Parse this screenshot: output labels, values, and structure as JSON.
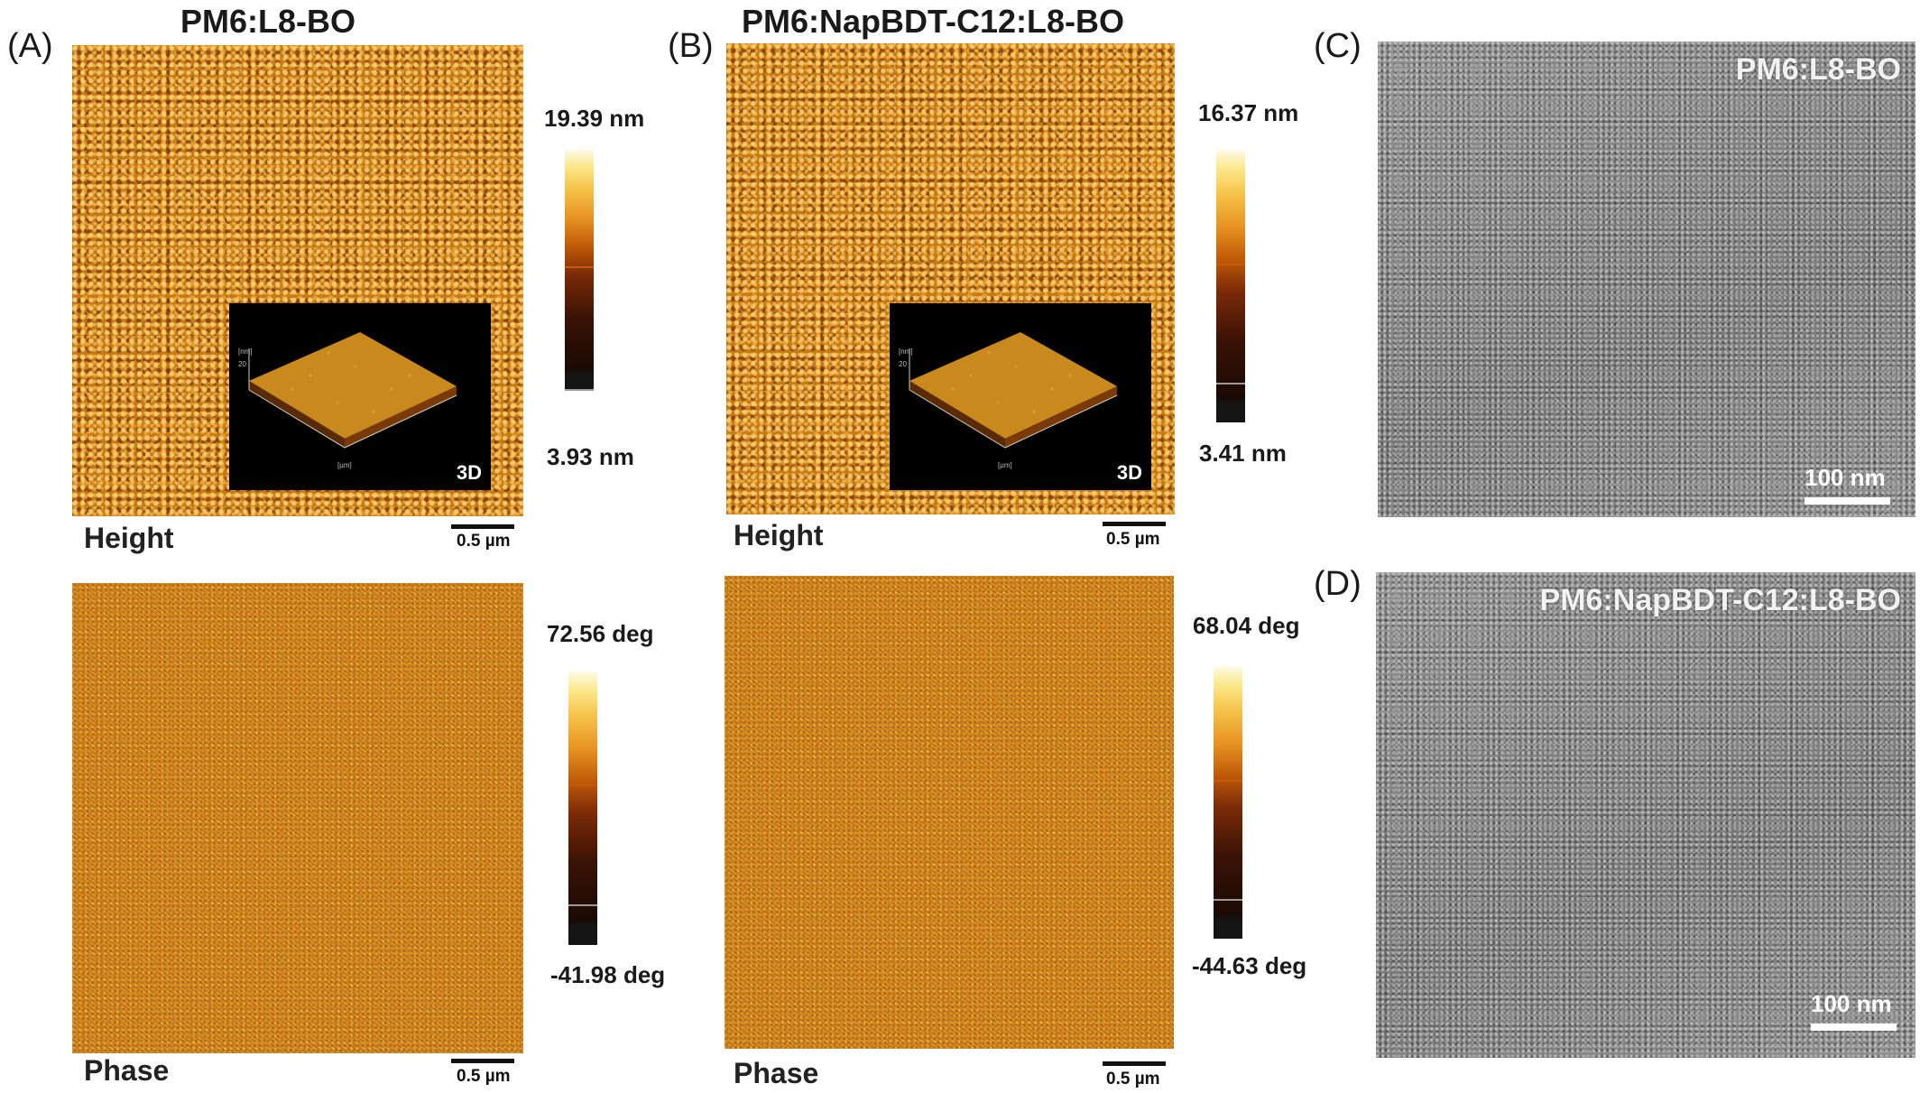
{
  "panels": {
    "a": {
      "letter": "(A)",
      "title": "PM6:L8-BO",
      "height_label": "Height",
      "phase_label": "Phase",
      "inset_label": "3D",
      "inset_axis_unit_z": "[nm]",
      "inset_axis_unit_x": "[µm]",
      "inset_axis_tick_z": "20",
      "height_scalebar": "0.5 µm",
      "phase_scalebar": "0.5 µm",
      "height_colorbar": {
        "max": "19.39 nm",
        "min": "3.93 nm"
      },
      "phase_colorbar": {
        "max": "72.56 deg",
        "min": "-41.98 deg"
      }
    },
    "b": {
      "letter": "(B)",
      "title": "PM6:NapBDT-C12:L8-BO",
      "height_label": "Height",
      "phase_label": "Phase",
      "inset_label": "3D",
      "inset_axis_unit_z": "[nm]",
      "inset_axis_unit_x": "[µm]",
      "inset_axis_tick_z": "20",
      "height_scalebar": "0.5 µm",
      "phase_scalebar": "0.5 µm",
      "height_colorbar": {
        "max": "16.37 nm",
        "min": "3.41 nm"
      },
      "phase_colorbar": {
        "max": "68.04 deg",
        "min": "-44.63 deg"
      }
    },
    "c": {
      "letter": "(C)",
      "title": "PM6:L8-BO",
      "scalebar": "100 nm"
    },
    "d": {
      "letter": "(D)",
      "title": "PM6:NapBDT-C12:L8-BO",
      "scalebar": "100 nm"
    }
  },
  "colors": {
    "afm_orange": "#c57a14",
    "colorbar_marker_orange": "#c85a08",
    "colorbar_marker_grey": "#9a9a9a",
    "tem_grey": "#8a8a8a"
  }
}
